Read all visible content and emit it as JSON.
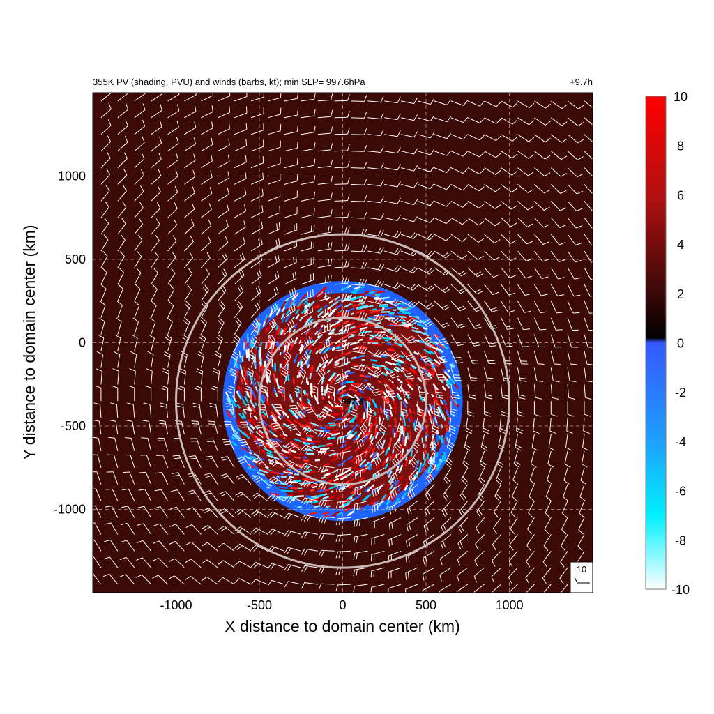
{
  "chart_data": {
    "type": "heatmap",
    "title": "355K PV (shading, PVU) and winds (barbs, kt); min SLP=  997.6hPa",
    "time_label": "+9.7h",
    "xlabel": "X distance to domain center (km)",
    "ylabel": "Y distance to domain center (km)",
    "xlim": [
      -1500,
      1500
    ],
    "ylim": [
      -1500,
      1500
    ],
    "x_ticks": [
      -1000,
      -500,
      0,
      500,
      1000
    ],
    "y_ticks": [
      1000,
      500,
      0,
      -500,
      -1000
    ],
    "x_tick_labels": [
      "-1000",
      "-500",
      "0",
      "500",
      "1000"
    ],
    "y_tick_labels": [
      "1000",
      "500",
      "0",
      "-500",
      "-1000"
    ],
    "grid": true,
    "storm_center_km": [
      0,
      -350
    ],
    "min_slp_label": "997.6",
    "range_rings_km": [
      500,
      1000
    ],
    "disturbed_region_radius_km": 720,
    "colorbar": {
      "min": -10,
      "max": 10,
      "tick_labels": [
        "10",
        "8",
        "6",
        "4",
        "2",
        "0",
        "-2",
        "-4",
        "-6",
        "-8",
        "-10"
      ],
      "colors": {
        "10": "#ff0000",
        "6": "#b31010",
        "2": "#3a0808",
        "0.5": "#000000",
        "0": "#3558ff",
        "-4": "#1fa0ff",
        "-7": "#00f0ff",
        "-10": "#ffffff"
      }
    },
    "background_color": "#3c0a06",
    "reference_barb_label": "10",
    "reference_barb_units": "kt"
  }
}
